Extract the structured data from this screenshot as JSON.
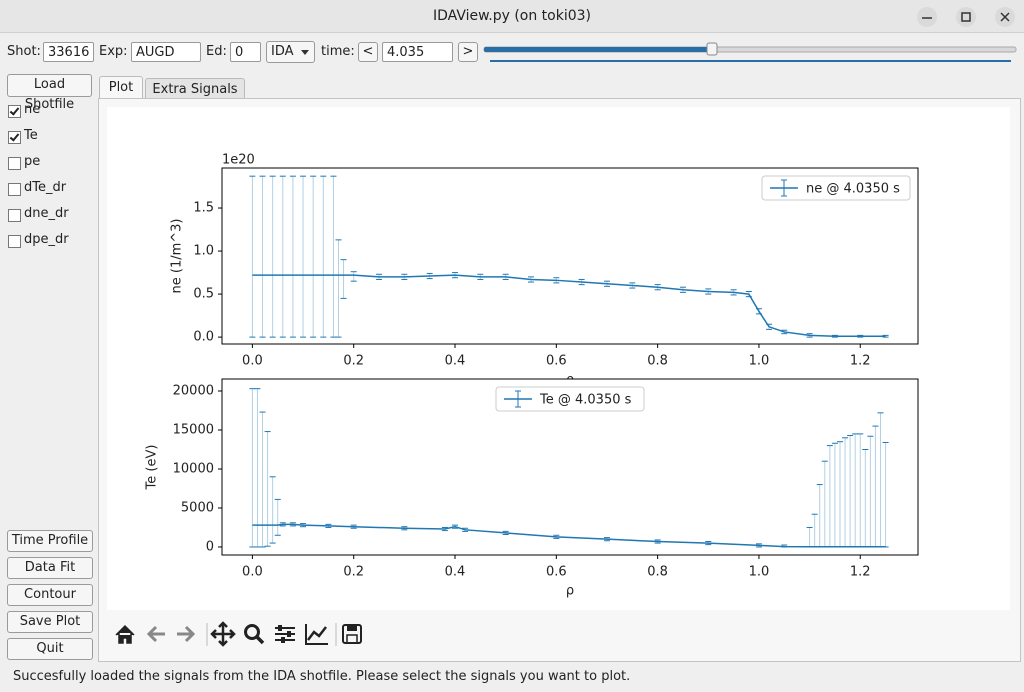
{
  "window_title": "IDAView.py (on toki03)",
  "controls": {
    "shot_label": "Shot:",
    "shot": "33616",
    "exp_label": "Exp:",
    "exp": "AUGD",
    "ed_label": "Ed:",
    "ed": "0",
    "diag": "IDA",
    "time_label": "time:",
    "prev": "<",
    "time": "4.035",
    "next": ">"
  },
  "sidebar": {
    "load": "Load Shotfile",
    "signals": [
      {
        "name": "ne",
        "checked": true
      },
      {
        "name": "Te",
        "checked": true
      },
      {
        "name": "pe",
        "checked": false
      },
      {
        "name": "dTe_dr",
        "checked": false
      },
      {
        "name": "dne_dr",
        "checked": false
      },
      {
        "name": "dpe_dr",
        "checked": false
      }
    ],
    "buttons": [
      "Time Profile",
      "Data Fit",
      "Contour",
      "Save Plot",
      "Quit"
    ]
  },
  "tabs": [
    "Plot",
    "Extra Signals"
  ],
  "status": "Succesfully loaded the signals from the IDA shotfile. Please select the signals you want to plot.",
  "chart_data": [
    {
      "type": "errorbar",
      "xlabel": "ρ",
      "ylabel": "ne (1/m^3)",
      "offset_text": "1e20",
      "legend": "upper right",
      "xlim": [
        -0.06,
        1.314
      ],
      "ylim": [
        -0.08,
        1.965
      ],
      "xticks": [
        {
          "value": 0,
          "label": "0.0"
        },
        0.2,
        0.4,
        0.6,
        0.8,
        {
          "value": 1,
          "label": "1.0"
        },
        1.2
      ],
      "yticks": [
        {
          "value": 0,
          "label": "0.0"
        },
        0.5,
        {
          "value": 1,
          "label": "1.0"
        },
        1.5
      ],
      "series": [
        {
          "name": "ne @ 4.0350 s",
          "color": "#1f77b4",
          "x": [
            0,
            0.02,
            0.04,
            0.06,
            0.08,
            0.1,
            0.12,
            0.14,
            0.16,
            0.17,
            0.18,
            0.2,
            0.25,
            0.3,
            0.35,
            0.4,
            0.45,
            0.5,
            0.55,
            0.6,
            0.65,
            0.7,
            0.75,
            0.8,
            0.85,
            0.9,
            0.95,
            0.98,
            1.0,
            1.02,
            1.05,
            1.1,
            1.15,
            1.2,
            1.25
          ],
          "values": [
            0.72,
            0.72,
            0.72,
            0.72,
            0.72,
            0.72,
            0.72,
            0.72,
            0.72,
            0.72,
            0.72,
            0.72,
            0.7,
            0.7,
            0.71,
            0.72,
            0.7,
            0.7,
            0.67,
            0.66,
            0.64,
            0.62,
            0.6,
            0.58,
            0.55,
            0.53,
            0.52,
            0.5,
            0.3,
            0.12,
            0.06,
            0.02,
            0.01,
            0.01,
            0.01
          ],
          "lower": [
            0,
            0,
            0,
            0,
            0,
            0,
            0,
            0,
            0,
            0,
            0.45,
            0.65,
            0.67,
            0.67,
            0.68,
            0.69,
            0.67,
            0.67,
            0.64,
            0.63,
            0.61,
            0.59,
            0.57,
            0.55,
            0.52,
            0.5,
            0.49,
            0.47,
            0.27,
            0.09,
            0.04,
            0,
            0,
            0,
            0
          ],
          "upper": [
            1.87,
            1.87,
            1.87,
            1.87,
            1.87,
            1.87,
            1.87,
            1.87,
            1.87,
            1.13,
            0.9,
            0.76,
            0.73,
            0.73,
            0.74,
            0.75,
            0.73,
            0.73,
            0.7,
            0.69,
            0.67,
            0.65,
            0.63,
            0.61,
            0.58,
            0.56,
            0.55,
            0.53,
            0.33,
            0.15,
            0.08,
            0.04,
            0.02,
            0.02,
            0.02
          ]
        }
      ]
    },
    {
      "type": "errorbar",
      "xlabel": "ρ",
      "ylabel": "Te (eV)",
      "legend": "upper center",
      "xlim": [
        -0.06,
        1.314
      ],
      "ylim": [
        -1030,
        21540
      ],
      "xticks": [
        {
          "value": 0,
          "label": "0.0"
        },
        0.2,
        0.4,
        0.6,
        0.8,
        {
          "value": 1,
          "label": "1.0"
        },
        1.2
      ],
      "yticks": [
        0,
        5000,
        10000,
        15000,
        20000
      ],
      "series": [
        {
          "name": "Te @ 4.0350 s",
          "color": "#1f77b4",
          "x": [
            0,
            0.01,
            0.02,
            0.03,
            0.04,
            0.05,
            0.06,
            0.08,
            0.1,
            0.15,
            0.2,
            0.3,
            0.38,
            0.4,
            0.42,
            0.5,
            0.6,
            0.7,
            0.8,
            0.9,
            1.0,
            1.05,
            1.1,
            1.11,
            1.12,
            1.13,
            1.14,
            1.15,
            1.16,
            1.17,
            1.18,
            1.19,
            1.2,
            1.21,
            1.22,
            1.23,
            1.24,
            1.25
          ],
          "values": [
            2800,
            2800,
            2800,
            2800,
            2800,
            2800,
            2900,
            2900,
            2800,
            2700,
            2600,
            2400,
            2300,
            2600,
            2200,
            1800,
            1300,
            1000,
            700,
            500,
            200,
            50,
            30,
            30,
            30,
            30,
            30,
            30,
            30,
            30,
            30,
            30,
            30,
            30,
            30,
            30,
            30,
            30
          ],
          "lower": [
            0,
            0,
            0,
            100,
            500,
            1500,
            2700,
            2700,
            2600,
            2500,
            2400,
            2200,
            2100,
            2400,
            2000,
            1600,
            1100,
            800,
            500,
            300,
            0,
            0,
            0,
            0,
            0,
            0,
            0,
            0,
            0,
            0,
            0,
            0,
            0,
            0,
            0,
            0,
            0,
            0
          ],
          "upper": [
            20300,
            20300,
            17300,
            14800,
            9000,
            6100,
            3100,
            3100,
            3000,
            2900,
            2800,
            2600,
            2500,
            2800,
            2400,
            2000,
            1500,
            1200,
            900,
            700,
            400,
            250,
            2500,
            4200,
            8000,
            11000,
            13000,
            13300,
            13500,
            14000,
            14300,
            14500,
            14500,
            12500,
            14200,
            15500,
            17200,
            13400
          ]
        }
      ]
    }
  ]
}
